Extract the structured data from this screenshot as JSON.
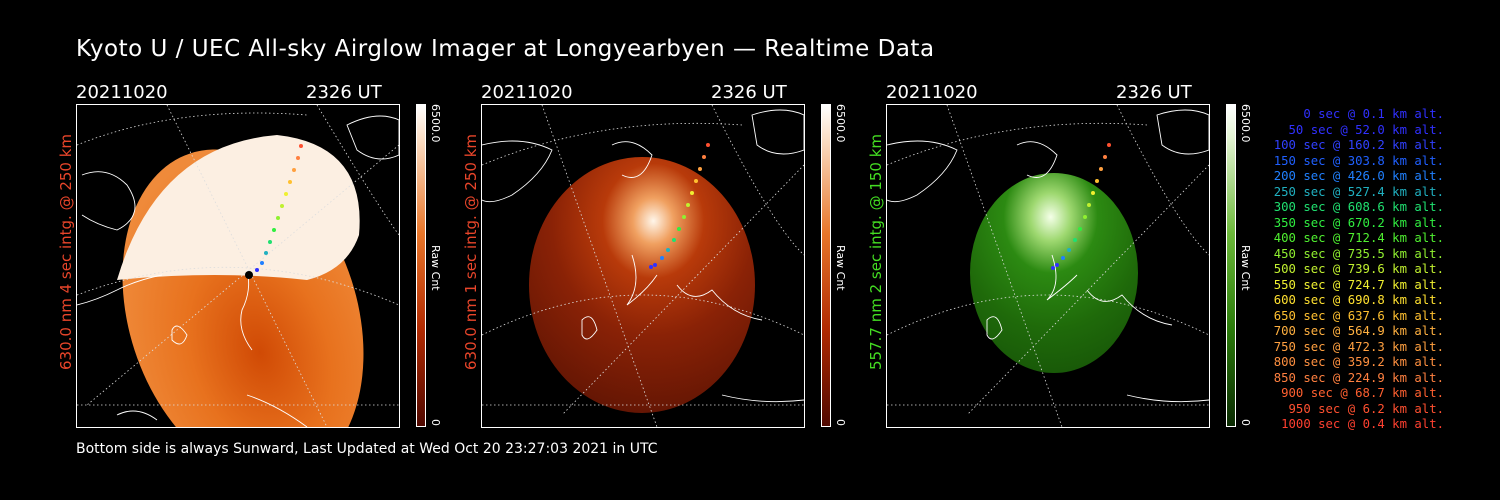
{
  "title": "Kyoto U / UEC All-sky Airglow Imager at Longyearbyen — Realtime Data",
  "panels": [
    {
      "date": "20211020",
      "time": "2326 UT",
      "side_label": "630.0 nm 4 sec intg. @ 250 km",
      "label_color": "#e8452a",
      "cbar_max": "6500.0",
      "cbar_unit": "Raw Cnt",
      "cbar_min": "0",
      "palette": "red-saturated"
    },
    {
      "date": "20211020",
      "time": "2326 UT",
      "side_label": "630.0 nm 1 sec intg. @ 250 km",
      "label_color": "#e8452a",
      "cbar_max": "6500.0",
      "cbar_unit": "Raw Cnt",
      "cbar_min": "0",
      "palette": "red"
    },
    {
      "date": "20211020",
      "time": "2326 UT",
      "side_label": "557.7 nm 2 sec intg. @ 150 km",
      "label_color": "#44dd22",
      "cbar_max": "6500.0",
      "cbar_unit": "Raw Cnt",
      "cbar_min": "0",
      "palette": "green"
    }
  ],
  "footer": "Bottom side is always Sunward, Last Updated at Wed Oct 20 23:27:03 2021 in UTC",
  "legend": [
    {
      "sec": "0 sec",
      "alt": "0.1 km alt.",
      "color": "#3030ff"
    },
    {
      "sec": "50 sec",
      "alt": "52.0 km alt.",
      "color": "#3030ff"
    },
    {
      "sec": "100 sec",
      "alt": "160.2 km alt.",
      "color": "#3040ff"
    },
    {
      "sec": "150 sec",
      "alt": "303.8 km alt.",
      "color": "#2060ff"
    },
    {
      "sec": "200 sec",
      "alt": "426.0 km alt.",
      "color": "#2080ff"
    },
    {
      "sec": "250 sec",
      "alt": "527.4 km alt.",
      "color": "#20b0c0"
    },
    {
      "sec": "300 sec",
      "alt": "608.6 km alt.",
      "color": "#20e070"
    },
    {
      "sec": "350 sec",
      "alt": "670.2 km alt.",
      "color": "#30ee40"
    },
    {
      "sec": "400 sec",
      "alt": "712.4 km alt.",
      "color": "#50f030"
    },
    {
      "sec": "450 sec",
      "alt": "735.5 km alt.",
      "color": "#90f030"
    },
    {
      "sec": "500 sec",
      "alt": "739.6 km alt.",
      "color": "#c0f030"
    },
    {
      "sec": "550 sec",
      "alt": "724.7 km alt.",
      "color": "#f0f030"
    },
    {
      "sec": "600 sec",
      "alt": "690.8 km alt.",
      "color": "#ffe030"
    },
    {
      "sec": "650 sec",
      "alt": "637.6 km alt.",
      "color": "#ffc030"
    },
    {
      "sec": "700 sec",
      "alt": "564.9 km alt.",
      "color": "#ffb040"
    },
    {
      "sec": "750 sec",
      "alt": "472.3 km alt.",
      "color": "#ffa040"
    },
    {
      "sec": "800 sec",
      "alt": "359.2 km alt.",
      "color": "#ff9040"
    },
    {
      "sec": "850 sec",
      "alt": "224.9 km alt.",
      "color": "#ff8040"
    },
    {
      "sec": "900 sec",
      "alt": "68.7 km alt.",
      "color": "#ff6030"
    },
    {
      "sec": "950 sec",
      "alt": "6.2 km alt.",
      "color": "#ff5030"
    },
    {
      "sec": "1000 sec",
      "alt": "0.4 km alt.",
      "color": "#ff4030"
    }
  ]
}
